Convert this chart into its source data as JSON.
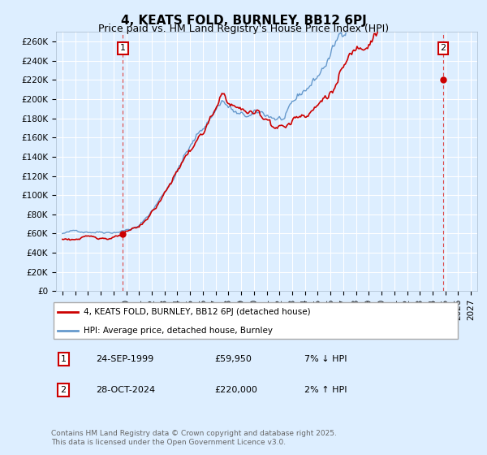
{
  "title": "4, KEATS FOLD, BURNLEY, BB12 6PJ",
  "subtitle": "Price paid vs. HM Land Registry's House Price Index (HPI)",
  "legend_line1": "4, KEATS FOLD, BURNLEY, BB12 6PJ (detached house)",
  "legend_line2": "HPI: Average price, detached house, Burnley",
  "annotation1_date": "24-SEP-1999",
  "annotation1_price": "£59,950",
  "annotation1_hpi": "7% ↓ HPI",
  "annotation2_date": "28-OCT-2024",
  "annotation2_price": "£220,000",
  "annotation2_hpi": "2% ↑ HPI",
  "sale1_x": 1999.73,
  "sale1_y": 59950,
  "sale2_x": 2024.83,
  "sale2_y": 220000,
  "hpi_color": "#6699cc",
  "price_color": "#cc0000",
  "annotation_box_color": "#cc0000",
  "background_color": "#ddeeff",
  "ylim": [
    0,
    270000
  ],
  "xlim": [
    1994.5,
    2027.5
  ],
  "yticks": [
    0,
    20000,
    40000,
    60000,
    80000,
    100000,
    120000,
    140000,
    160000,
    180000,
    200000,
    220000,
    240000,
    260000
  ],
  "ytick_labels": [
    "£0",
    "£20K",
    "£40K",
    "£60K",
    "£80K",
    "£100K",
    "£120K",
    "£140K",
    "£160K",
    "£180K",
    "£200K",
    "£220K",
    "£240K",
    "£260K"
  ],
  "xtick_years": [
    1995,
    1996,
    1997,
    1998,
    1999,
    2000,
    2001,
    2002,
    2003,
    2004,
    2005,
    2006,
    2007,
    2008,
    2009,
    2010,
    2011,
    2012,
    2013,
    2014,
    2015,
    2016,
    2017,
    2018,
    2019,
    2020,
    2021,
    2022,
    2023,
    2024,
    2025,
    2026,
    2027
  ],
  "footer": "Contains HM Land Registry data © Crown copyright and database right 2025.\nThis data is licensed under the Open Government Licence v3.0.",
  "grid_color": "#ffffff",
  "vline_color": "#dd4444"
}
